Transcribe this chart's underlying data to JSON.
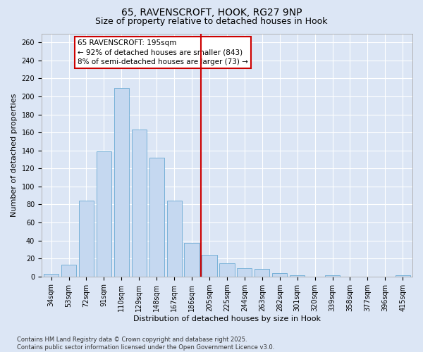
{
  "title_line1": "65, RAVENSCROFT, HOOK, RG27 9NP",
  "title_line2": "Size of property relative to detached houses in Hook",
  "xlabel": "Distribution of detached houses by size in Hook",
  "ylabel": "Number of detached properties",
  "bar_labels": [
    "34sqm",
    "53sqm",
    "72sqm",
    "91sqm",
    "110sqm",
    "129sqm",
    "148sqm",
    "167sqm",
    "186sqm",
    "205sqm",
    "225sqm",
    "244sqm",
    "263sqm",
    "282sqm",
    "301sqm",
    "320sqm",
    "339sqm",
    "358sqm",
    "377sqm",
    "396sqm",
    "415sqm"
  ],
  "bar_values": [
    3,
    13,
    84,
    139,
    209,
    163,
    132,
    84,
    37,
    24,
    15,
    9,
    8,
    4,
    1,
    0,
    1,
    0,
    0,
    0,
    1
  ],
  "bar_color": "#c5d8f0",
  "bar_edgecolor": "#6aaad4",
  "annotation_text": "65 RAVENSCROFT: 195sqm\n← 92% of detached houses are smaller (843)\n8% of semi-detached houses are larger (73) →",
  "vline_x": 8.5,
  "vline_color": "#cc0000",
  "annotation_box_color": "#cc0000",
  "ylim": [
    0,
    270
  ],
  "yticks": [
    0,
    20,
    40,
    60,
    80,
    100,
    120,
    140,
    160,
    180,
    200,
    220,
    240,
    260
  ],
  "background_color": "#dce6f5",
  "grid_color": "#ffffff",
  "footer_text": "Contains HM Land Registry data © Crown copyright and database right 2025.\nContains public sector information licensed under the Open Government Licence v3.0.",
  "title_fontsize": 10,
  "subtitle_fontsize": 9,
  "axis_label_fontsize": 8,
  "tick_fontsize": 7,
  "annotation_fontsize": 7.5,
  "footer_fontsize": 6
}
